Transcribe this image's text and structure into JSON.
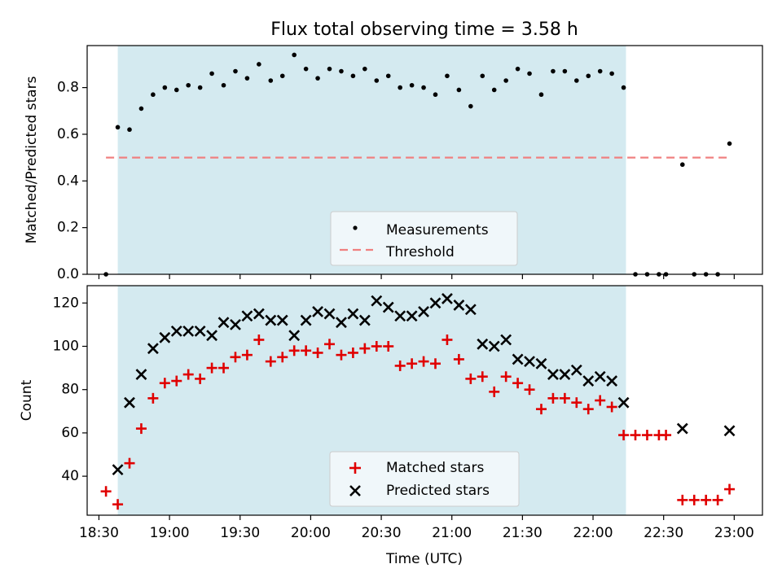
{
  "chart_data": [
    {
      "type": "scatter",
      "title": "Flux total observing time = 3.58 h",
      "xlabel": "",
      "ylabel": "Matched/Predicted stars",
      "xlim": [
        "18:25",
        "23:12"
      ],
      "ylim": [
        0,
        0.98
      ],
      "yticks": [
        "0.0",
        "0.2",
        "0.4",
        "0.6",
        "0.8"
      ],
      "shaded_interval": [
        "18:38",
        "22:14"
      ],
      "shade_color": "#d4eaf0",
      "legend_position": "lower center",
      "series": [
        {
          "name": "Measurements",
          "marker": "dot",
          "color": "#000000",
          "x": [
            "18:33",
            "18:38",
            "18:43",
            "18:48",
            "18:53",
            "18:58",
            "19:03",
            "19:08",
            "19:13",
            "19:18",
            "19:23",
            "19:28",
            "19:33",
            "19:38",
            "19:43",
            "19:48",
            "19:53",
            "19:58",
            "20:03",
            "20:08",
            "20:13",
            "20:18",
            "20:23",
            "20:28",
            "20:33",
            "20:38",
            "20:43",
            "20:48",
            "20:53",
            "20:58",
            "21:03",
            "21:08",
            "21:13",
            "21:18",
            "21:23",
            "21:28",
            "21:33",
            "21:38",
            "21:43",
            "21:48",
            "21:53",
            "21:58",
            "22:03",
            "22:08",
            "22:13",
            "22:18",
            "22:23",
            "22:28",
            "22:31",
            "22:38",
            "22:43",
            "22:48",
            "22:53",
            "22:58"
          ],
          "y": [
            0.0,
            0.63,
            0.62,
            0.71,
            0.77,
            0.8,
            0.79,
            0.81,
            0.8,
            0.86,
            0.81,
            0.87,
            0.84,
            0.9,
            0.83,
            0.85,
            0.94,
            0.88,
            0.84,
            0.88,
            0.87,
            0.85,
            0.88,
            0.83,
            0.85,
            0.8,
            0.81,
            0.8,
            0.77,
            0.85,
            0.79,
            0.72,
            0.85,
            0.79,
            0.83,
            0.88,
            0.86,
            0.77,
            0.87,
            0.87,
            0.83,
            0.85,
            0.87,
            0.86,
            0.8,
            0.0,
            0.0,
            0.0,
            0.0,
            0.47,
            0.0,
            0.0,
            0.0,
            0.56
          ]
        },
        {
          "name": "Threshold",
          "marker": "dashed-line",
          "color": "#f08080",
          "x": [
            "18:33",
            "22:58"
          ],
          "y": [
            0.5,
            0.5
          ]
        }
      ]
    },
    {
      "type": "scatter",
      "title": "",
      "xlabel": "Time (UTC)",
      "ylabel": "Count",
      "xlim": [
        "18:25",
        "23:12"
      ],
      "ylim": [
        22,
        128
      ],
      "xticks": [
        "18:30",
        "19:00",
        "19:30",
        "20:00",
        "20:30",
        "21:00",
        "21:30",
        "22:00",
        "22:30",
        "23:00"
      ],
      "yticks": [
        "40",
        "60",
        "80",
        "100",
        "120"
      ],
      "shaded_interval": [
        "18:38",
        "22:14"
      ],
      "shade_color": "#d4eaf0",
      "legend_position": "lower center",
      "series": [
        {
          "name": "Matched stars",
          "marker": "plus",
          "color": "#e00000",
          "x": [
            "18:33",
            "18:38",
            "18:43",
            "18:48",
            "18:53",
            "18:58",
            "19:03",
            "19:08",
            "19:13",
            "19:18",
            "19:23",
            "19:28",
            "19:33",
            "19:38",
            "19:43",
            "19:48",
            "19:53",
            "19:58",
            "20:03",
            "20:08",
            "20:13",
            "20:18",
            "20:23",
            "20:28",
            "20:33",
            "20:38",
            "20:43",
            "20:48",
            "20:53",
            "20:58",
            "21:03",
            "21:08",
            "21:13",
            "21:18",
            "21:23",
            "21:28",
            "21:33",
            "21:38",
            "21:43",
            "21:48",
            "21:53",
            "21:58",
            "22:03",
            "22:08",
            "22:13",
            "22:18",
            "22:23",
            "22:28",
            "22:31",
            "22:38",
            "22:43",
            "22:48",
            "22:53",
            "22:58"
          ],
          "y": [
            33,
            27,
            46,
            62,
            76,
            83,
            84,
            87,
            85,
            90,
            90,
            95,
            96,
            103,
            93,
            95,
            98,
            98,
            97,
            101,
            96,
            97,
            99,
            100,
            100,
            91,
            92,
            93,
            92,
            103,
            94,
            85,
            86,
            79,
            86,
            83,
            80,
            71,
            76,
            76,
            74,
            71,
            75,
            72,
            59,
            59,
            59,
            59,
            59,
            29,
            29,
            29,
            29,
            34
          ]
        },
        {
          "name": "Predicted stars",
          "marker": "x",
          "color": "#000000",
          "x": [
            "18:38",
            "18:43",
            "18:48",
            "18:53",
            "18:58",
            "19:03",
            "19:08",
            "19:13",
            "19:18",
            "19:23",
            "19:28",
            "19:33",
            "19:38",
            "19:43",
            "19:48",
            "19:53",
            "19:58",
            "20:03",
            "20:08",
            "20:13",
            "20:18",
            "20:23",
            "20:28",
            "20:33",
            "20:38",
            "20:43",
            "20:48",
            "20:53",
            "20:58",
            "21:03",
            "21:08",
            "21:13",
            "21:18",
            "21:23",
            "21:28",
            "21:33",
            "21:38",
            "21:43",
            "21:48",
            "21:53",
            "21:58",
            "22:03",
            "22:08",
            "22:13",
            "22:38",
            "22:58"
          ],
          "y": [
            43,
            74,
            87,
            99,
            104,
            107,
            107,
            107,
            105,
            111,
            110,
            114,
            115,
            112,
            112,
            105,
            112,
            116,
            115,
            111,
            115,
            112,
            121,
            118,
            114,
            114,
            116,
            120,
            122,
            119,
            117,
            101,
            100,
            103,
            94,
            93,
            92,
            87,
            87,
            89,
            84,
            86,
            84,
            74,
            62,
            61
          ]
        }
      ]
    }
  ]
}
